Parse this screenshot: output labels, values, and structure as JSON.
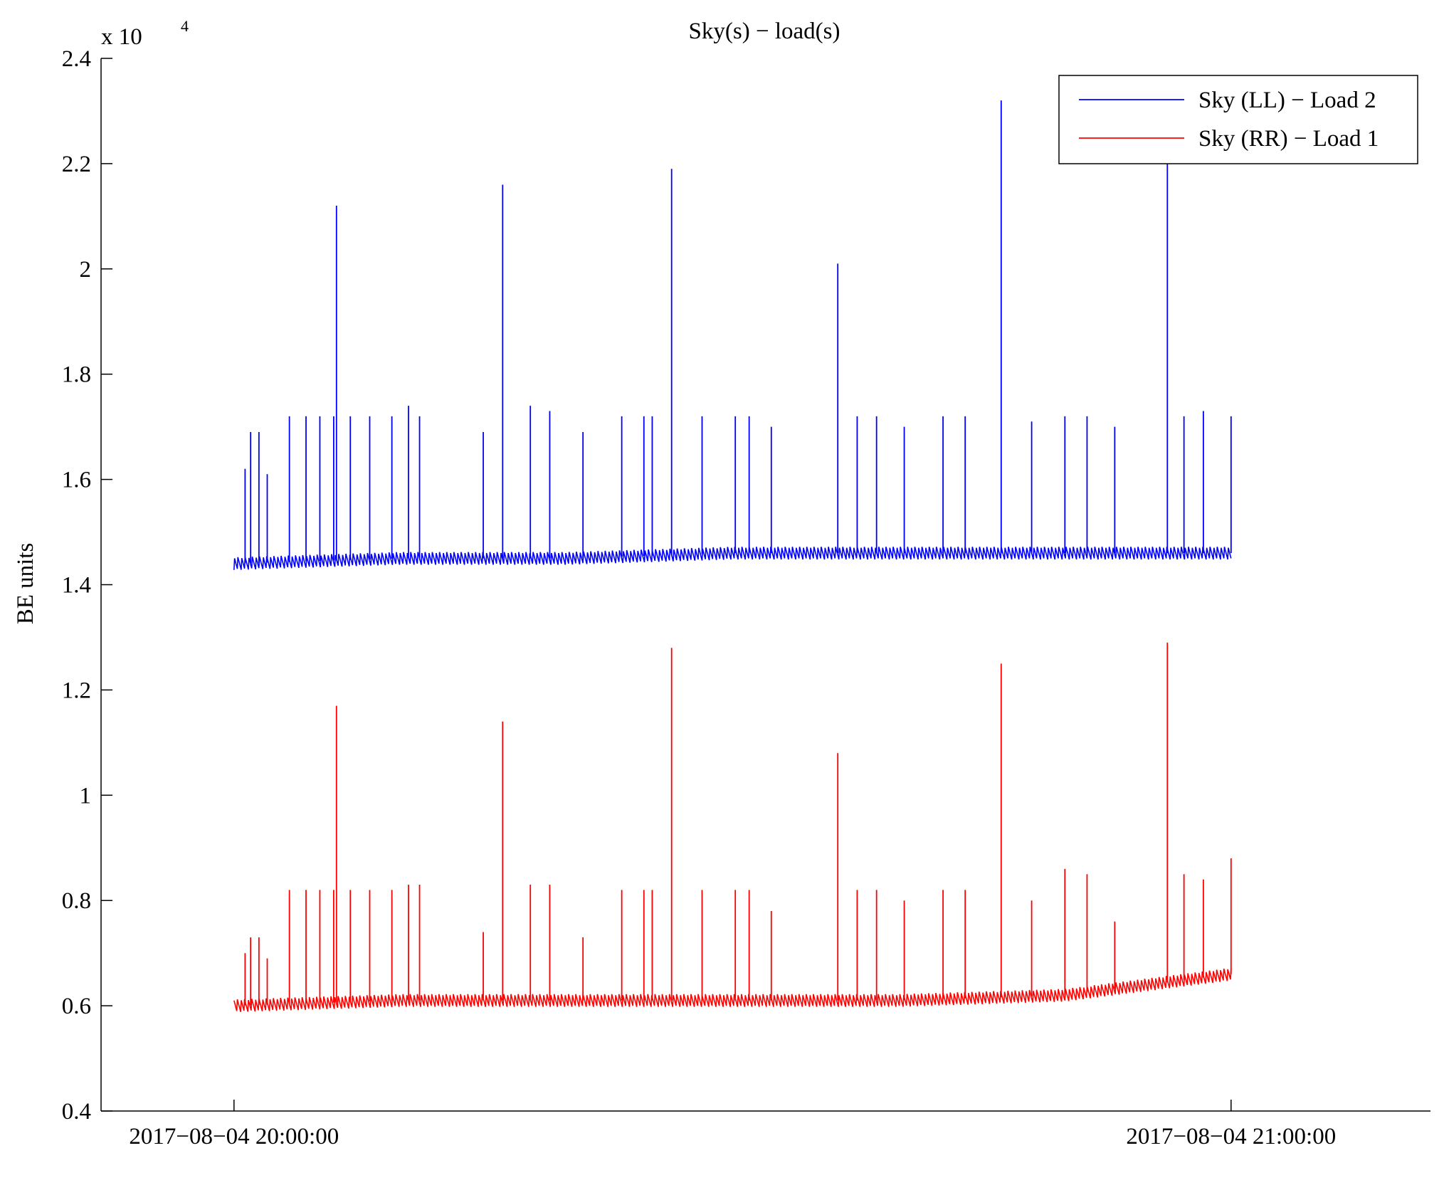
{
  "chart_data": {
    "type": "line",
    "title": "Sky(s) − load(s)",
    "ylabel": "BE units",
    "xlabel": "",
    "y_exponent_label": "x 10",
    "y_exponent": "4",
    "ylim": [
      0.4,
      2.4
    ],
    "yticks": [
      "0.4",
      "0.6",
      "0.8",
      "1",
      "1.2",
      "1.4",
      "1.6",
      "1.8",
      "2",
      "2.2",
      "2.4"
    ],
    "xlim": [
      "2017-08-04 19:52:00",
      "2017-08-04 21:12:00"
    ],
    "xticks": [
      "2017−08−04 20:00:00",
      "2017−08−04 21:00:00"
    ],
    "grid": false,
    "legend_position": "top-right",
    "series": [
      {
        "name": "Sky (LL) − Load 2",
        "color": "#0000ff",
        "baseline": [
          [
            "2017-08-04 20:00:00",
            1.44
          ],
          [
            "2017-08-04 20:10:00",
            1.45
          ],
          [
            "2017-08-04 20:20:00",
            1.45
          ],
          [
            "2017-08-04 20:30:00",
            1.46
          ],
          [
            "2017-08-04 20:40:00",
            1.46
          ],
          [
            "2017-08-04 20:50:00",
            1.46
          ],
          [
            "2017-08-04 21:00:00",
            1.46
          ]
        ],
        "peaks": [
          [
            "2017-08-04 20:00:40",
            1.62
          ],
          [
            "2017-08-04 20:01:00",
            1.69
          ],
          [
            "2017-08-04 20:01:30",
            1.69
          ],
          [
            "2017-08-04 20:02:00",
            1.61
          ],
          [
            "2017-08-04 20:03:20",
            1.72
          ],
          [
            "2017-08-04 20:04:20",
            1.72
          ],
          [
            "2017-08-04 20:05:10",
            1.72
          ],
          [
            "2017-08-04 20:06:00",
            1.72
          ],
          [
            "2017-08-04 20:06:10",
            2.12
          ],
          [
            "2017-08-04 20:07:00",
            1.72
          ],
          [
            "2017-08-04 20:08:10",
            1.72
          ],
          [
            "2017-08-04 20:09:30",
            1.72
          ],
          [
            "2017-08-04 20:10:30",
            1.74
          ],
          [
            "2017-08-04 20:11:10",
            1.72
          ],
          [
            "2017-08-04 20:15:00",
            1.69
          ],
          [
            "2017-08-04 20:16:10",
            2.16
          ],
          [
            "2017-08-04 20:17:50",
            1.74
          ],
          [
            "2017-08-04 20:19:00",
            1.73
          ],
          [
            "2017-08-04 20:21:00",
            1.69
          ],
          [
            "2017-08-04 20:23:20",
            1.72
          ],
          [
            "2017-08-04 20:24:40",
            1.72
          ],
          [
            "2017-08-04 20:25:10",
            1.72
          ],
          [
            "2017-08-04 20:26:20",
            2.19
          ],
          [
            "2017-08-04 20:28:10",
            1.72
          ],
          [
            "2017-08-04 20:30:10",
            1.72
          ],
          [
            "2017-08-04 20:31:00",
            1.72
          ],
          [
            "2017-08-04 20:32:20",
            1.7
          ],
          [
            "2017-08-04 20:36:20",
            2.01
          ],
          [
            "2017-08-04 20:37:30",
            1.72
          ],
          [
            "2017-08-04 20:38:40",
            1.72
          ],
          [
            "2017-08-04 20:40:20",
            1.7
          ],
          [
            "2017-08-04 20:42:40",
            1.72
          ],
          [
            "2017-08-04 20:44:00",
            1.72
          ],
          [
            "2017-08-04 20:46:10",
            2.32
          ],
          [
            "2017-08-04 20:48:00",
            1.71
          ],
          [
            "2017-08-04 20:50:00",
            1.72
          ],
          [
            "2017-08-04 20:51:20",
            1.72
          ],
          [
            "2017-08-04 20:53:00",
            1.7
          ],
          [
            "2017-08-04 20:56:10",
            2.28
          ],
          [
            "2017-08-04 20:57:10",
            1.72
          ],
          [
            "2017-08-04 20:58:20",
            1.73
          ],
          [
            "2017-08-04 21:00:00",
            1.72
          ]
        ]
      },
      {
        "name": "Sky (RR) − Load 1",
        "color": "#ff0000",
        "baseline": [
          [
            "2017-08-04 20:00:00",
            0.6
          ],
          [
            "2017-08-04 20:10:00",
            0.61
          ],
          [
            "2017-08-04 20:20:00",
            0.61
          ],
          [
            "2017-08-04 20:30:00",
            0.61
          ],
          [
            "2017-08-04 20:40:00",
            0.61
          ],
          [
            "2017-08-04 20:50:00",
            0.62
          ],
          [
            "2017-08-04 21:00:00",
            0.66
          ]
        ],
        "peaks": [
          [
            "2017-08-04 20:00:40",
            0.7
          ],
          [
            "2017-08-04 20:01:00",
            0.73
          ],
          [
            "2017-08-04 20:01:30",
            0.73
          ],
          [
            "2017-08-04 20:02:00",
            0.69
          ],
          [
            "2017-08-04 20:03:20",
            0.82
          ],
          [
            "2017-08-04 20:04:20",
            0.82
          ],
          [
            "2017-08-04 20:05:10",
            0.82
          ],
          [
            "2017-08-04 20:06:00",
            0.82
          ],
          [
            "2017-08-04 20:06:10",
            1.17
          ],
          [
            "2017-08-04 20:07:00",
            0.82
          ],
          [
            "2017-08-04 20:08:10",
            0.82
          ],
          [
            "2017-08-04 20:09:30",
            0.82
          ],
          [
            "2017-08-04 20:10:30",
            0.83
          ],
          [
            "2017-08-04 20:11:10",
            0.83
          ],
          [
            "2017-08-04 20:15:00",
            0.74
          ],
          [
            "2017-08-04 20:16:10",
            1.14
          ],
          [
            "2017-08-04 20:17:50",
            0.83
          ],
          [
            "2017-08-04 20:19:00",
            0.83
          ],
          [
            "2017-08-04 20:21:00",
            0.73
          ],
          [
            "2017-08-04 20:23:20",
            0.82
          ],
          [
            "2017-08-04 20:24:40",
            0.82
          ],
          [
            "2017-08-04 20:25:10",
            0.82
          ],
          [
            "2017-08-04 20:26:20",
            1.28
          ],
          [
            "2017-08-04 20:28:10",
            0.82
          ],
          [
            "2017-08-04 20:30:10",
            0.82
          ],
          [
            "2017-08-04 20:31:00",
            0.82
          ],
          [
            "2017-08-04 20:32:20",
            0.78
          ],
          [
            "2017-08-04 20:36:20",
            1.08
          ],
          [
            "2017-08-04 20:37:30",
            0.82
          ],
          [
            "2017-08-04 20:38:40",
            0.82
          ],
          [
            "2017-08-04 20:40:20",
            0.8
          ],
          [
            "2017-08-04 20:42:40",
            0.82
          ],
          [
            "2017-08-04 20:44:00",
            0.82
          ],
          [
            "2017-08-04 20:46:10",
            1.25
          ],
          [
            "2017-08-04 20:48:00",
            0.8
          ],
          [
            "2017-08-04 20:50:00",
            0.86
          ],
          [
            "2017-08-04 20:51:20",
            0.85
          ],
          [
            "2017-08-04 20:53:00",
            0.76
          ],
          [
            "2017-08-04 20:56:10",
            1.29
          ],
          [
            "2017-08-04 20:57:10",
            0.85
          ],
          [
            "2017-08-04 20:58:20",
            0.84
          ],
          [
            "2017-08-04 21:00:00",
            0.88
          ]
        ]
      }
    ]
  }
}
